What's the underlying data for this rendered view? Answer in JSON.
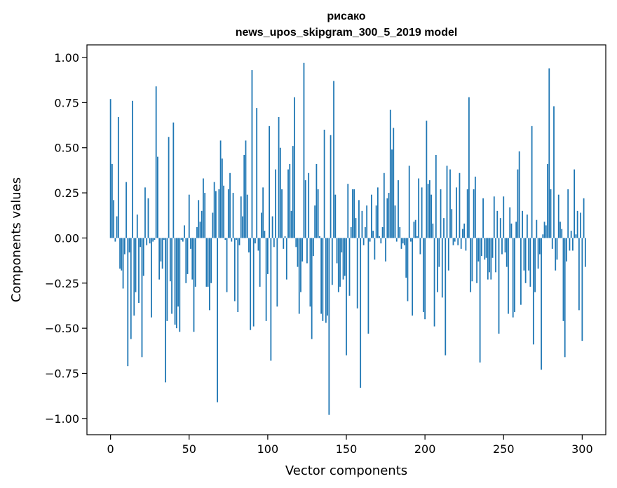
{
  "chart_data": {
    "type": "bar",
    "title": "рисако",
    "subtitle": "news_upos_skipgram_300_5_2019 model",
    "xlabel": "Vector components",
    "ylabel": "Components values",
    "xlim": [
      -15,
      315
    ],
    "ylim": [
      -1.09,
      1.07
    ],
    "xticks": [
      0,
      50,
      100,
      150,
      200,
      250,
      300
    ],
    "xtick_labels": [
      "0",
      "50",
      "100",
      "150",
      "200",
      "250",
      "300"
    ],
    "yticks": [
      -1.0,
      -0.75,
      -0.5,
      -0.25,
      0.0,
      0.25,
      0.5,
      0.75,
      1.0
    ],
    "ytick_labels": [
      "−1.00",
      "−0.75",
      "−0.50",
      "−0.25",
      "0.00",
      "0.25",
      "0.50",
      "0.75",
      "1.00"
    ],
    "bar_color": "#1f77b4",
    "values": [
      0.77,
      0.41,
      0.21,
      -0.02,
      0.12,
      0.67,
      -0.17,
      -0.18,
      -0.28,
      -0.09,
      0.31,
      -0.71,
      -0.08,
      -0.56,
      0.76,
      -0.43,
      -0.3,
      0.13,
      -0.36,
      -0.05,
      -0.66,
      -0.21,
      0.28,
      -0.04,
      0.22,
      -0.03,
      -0.44,
      -0.02,
      -0.01,
      0.84,
      0.45,
      -0.23,
      -0.13,
      -0.17,
      -0.01,
      -0.8,
      -0.46,
      0.56,
      -0.24,
      -0.42,
      0.64,
      -0.48,
      -0.5,
      -0.38,
      -0.52,
      -0.01,
      -0.02,
      0.07,
      -0.25,
      -0.2,
      0.24,
      -0.06,
      -0.23,
      -0.52,
      -0.27,
      0.06,
      0.21,
      0.09,
      0.15,
      0.33,
      0.25,
      -0.27,
      -0.27,
      -0.4,
      -0.25,
      0.14,
      0.31,
      0.26,
      -0.91,
      0.27,
      0.54,
      0.44,
      0.29,
      -0.01,
      -0.3,
      0.27,
      0.36,
      -0.02,
      0.25,
      -0.35,
      -0.01,
      -0.41,
      -0.04,
      0.23,
      0.12,
      0.46,
      0.54,
      0.24,
      -0.08,
      -0.51,
      0.93,
      -0.49,
      -0.03,
      0.72,
      -0.07,
      -0.27,
      0.14,
      0.28,
      0.04,
      -0.46,
      -0.2,
      0.62,
      -0.68,
      0.12,
      -0.05,
      0.38,
      -0.38,
      0.67,
      0.5,
      0.27,
      -0.06,
      0.01,
      -0.23,
      0.38,
      0.41,
      0.15,
      0.51,
      0.78,
      -0.05,
      -0.16,
      -0.42,
      -0.3,
      -0.13,
      0.97,
      0.32,
      -0.14,
      0.36,
      -0.38,
      -0.56,
      -0.1,
      0.18,
      0.41,
      0.27,
      0.01,
      -0.42,
      -0.46,
      0.6,
      -0.47,
      -0.43,
      -0.98,
      0.57,
      -0.26,
      0.87,
      0.24,
      -0.14,
      -0.3,
      -0.27,
      -0.08,
      -0.23,
      -0.21,
      -0.65,
      0.3,
      -0.32,
      0.06,
      0.27,
      0.27,
      0.11,
      -0.39,
      0.21,
      -0.83,
      0.15,
      -0.04,
      0.06,
      0.18,
      -0.53,
      -0.02,
      0.24,
      0.04,
      -0.12,
      0.18,
      0.28,
      0.01,
      -0.03,
      0.06,
      0.36,
      -0.13,
      0.22,
      0.25,
      0.71,
      0.49,
      0.61,
      0.18,
      -0.02,
      0.32,
      0.06,
      -0.06,
      -0.03,
      -0.04,
      -0.22,
      -0.35,
      0.4,
      -0.02,
      -0.43,
      0.09,
      0.1,
      0.01,
      0.33,
      -0.09,
      0.28,
      -0.41,
      -0.45,
      0.65,
      0.3,
      0.32,
      0.24,
      0.08,
      -0.49,
      0.46,
      -0.3,
      -0.16,
      0.27,
      -0.33,
      0.11,
      -0.65,
      0.4,
      -0.18,
      0.38,
      0.16,
      -0.04,
      -0.02,
      0.28,
      -0.04,
      0.36,
      -0.06,
      0.05,
      0.08,
      -0.07,
      0.27,
      0.78,
      -0.3,
      -0.24,
      0.27,
      0.34,
      -0.25,
      -0.13,
      -0.69,
      -0.1,
      0.22,
      -0.12,
      -0.11,
      -0.23,
      -0.19,
      -0.23,
      -0.11,
      0.23,
      -0.19,
      0.15,
      -0.53,
      0.11,
      -0.09,
      0.23,
      -0.08,
      -0.16,
      -0.42,
      0.17,
      0.08,
      -0.44,
      -0.41,
      0.09,
      0.38,
      0.48,
      -0.37,
      0.15,
      -0.18,
      -0.25,
      0.13,
      -0.18,
      -0.27,
      0.62,
      -0.59,
      -0.3,
      0.1,
      -0.17,
      -0.09,
      -0.73,
      0.02,
      0.09,
      0.07,
      0.41,
      0.94,
      0.27,
      -0.06,
      0.73,
      -0.18,
      -0.12,
      0.24,
      0.09,
      0.05,
      -0.46,
      -0.66,
      -0.13,
      0.27,
      -0.07,
      0.04,
      -0.07,
      0.38,
      0.02,
      0.15,
      -0.4,
      0.14,
      -0.57,
      0.22,
      -0.16
    ]
  }
}
